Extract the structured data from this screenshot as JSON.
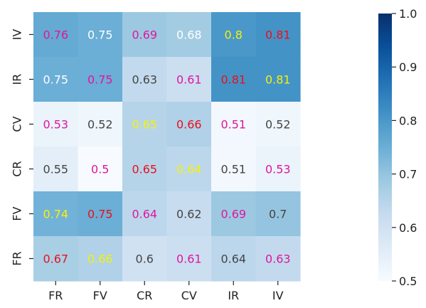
{
  "chart_data": {
    "type": "heatmap",
    "title": "",
    "xlabel": "",
    "ylabel": "",
    "x_categories": [
      "FR",
      "FV",
      "CR",
      "CV",
      "IR",
      "IV"
    ],
    "y_categories": [
      "IV",
      "IR",
      "CV",
      "CR",
      "FV",
      "FR"
    ],
    "values": [
      [
        0.76,
        0.75,
        0.69,
        0.68,
        0.8,
        0.81
      ],
      [
        0.75,
        0.75,
        0.63,
        0.61,
        0.81,
        0.81
      ],
      [
        0.53,
        0.52,
        0.65,
        0.66,
        0.51,
        0.52
      ],
      [
        0.55,
        0.5,
        0.65,
        0.64,
        0.51,
        0.53
      ],
      [
        0.74,
        0.75,
        0.64,
        0.62,
        0.69,
        0.7
      ],
      [
        0.67,
        0.66,
        0.6,
        0.61,
        0.64,
        0.63
      ]
    ],
    "labels": [
      [
        "0.76",
        "0.75",
        "0.69",
        "0.68",
        "0.8",
        "0.81"
      ],
      [
        "0.75",
        "0.75",
        "0.63",
        "0.61",
        "0.81",
        "0.81"
      ],
      [
        "0.53",
        "0.52",
        "0.65",
        "0.66",
        "0.51",
        "0.52"
      ],
      [
        "0.55",
        "0.5",
        "0.65",
        "0.64",
        "0.51",
        "0.53"
      ],
      [
        "0.74",
        "0.75",
        "0.64",
        "0.62",
        "0.69",
        "0.7"
      ],
      [
        "0.67",
        "0.66",
        "0.6",
        "0.61",
        "0.64",
        "0.63"
      ]
    ],
    "label_colors": [
      [
        "#e0169e",
        "#ffffff",
        "#e0169e",
        "#ffffff",
        "#f5f10a",
        "#e8101c"
      ],
      [
        "#ffffff",
        "#e0169e",
        "#444444",
        "#e0169e",
        "#e8101c",
        "#f5f10a"
      ],
      [
        "#e0169e",
        "#444444",
        "#f5f10a",
        "#e8101c",
        "#e0169e",
        "#444444"
      ],
      [
        "#444444",
        "#e0169e",
        "#e8101c",
        "#f5f10a",
        "#444444",
        "#e0169e"
      ],
      [
        "#f5f10a",
        "#e8101c",
        "#e0169e",
        "#444444",
        "#e0169e",
        "#444444"
      ],
      [
        "#e8101c",
        "#f5f10a",
        "#444444",
        "#e0169e",
        "#444444",
        "#e0169e"
      ]
    ],
    "colormap": "Blues",
    "color_range": [
      0.5,
      1.0
    ],
    "colorbar_ticks": [
      0.5,
      0.6,
      0.7,
      0.8,
      0.9,
      1.0
    ],
    "colorbar_tick_labels": [
      "0.5",
      "0.6",
      "0.7",
      "0.8",
      "0.9",
      "1.0"
    ],
    "grid": false,
    "legend": "colorbar-right"
  }
}
